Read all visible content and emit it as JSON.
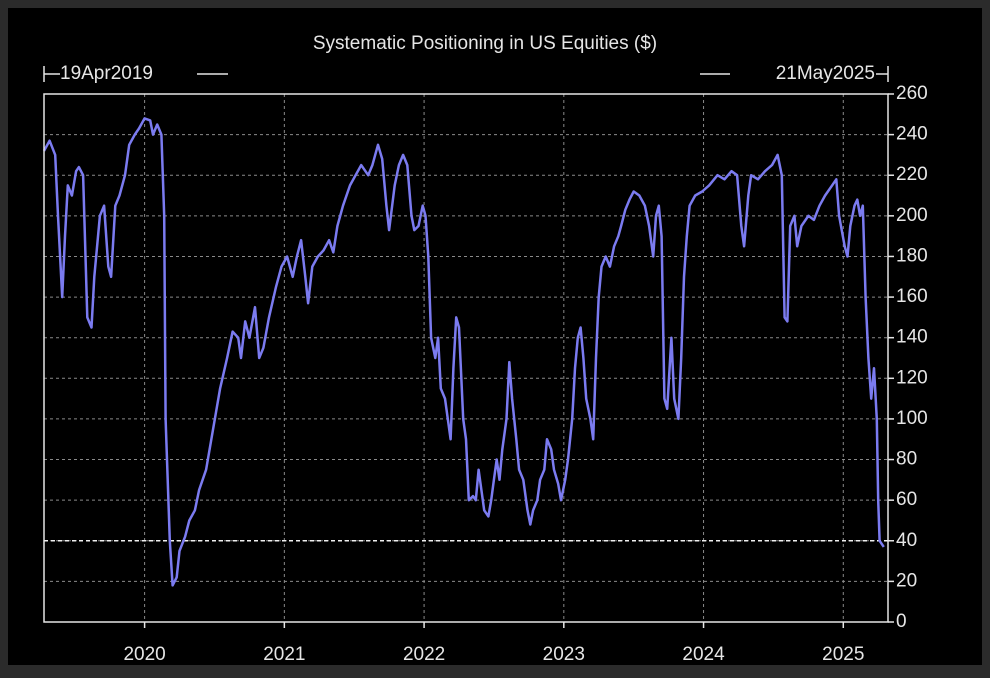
{
  "chart_data": {
    "type": "line",
    "title": "Systematic Positioning in US Equities ($)",
    "start_label": "19Apr2019",
    "end_label": "21May2025",
    "color": "#7b7bf0",
    "grid": true,
    "reference_line": 40,
    "xlim": [
      2019.28,
      2025.32
    ],
    "xticks": [
      2020,
      2021,
      2022,
      2023,
      2024,
      2025
    ],
    "ylim": [
      0,
      260
    ],
    "yticks": [
      0,
      20,
      40,
      60,
      80,
      100,
      120,
      140,
      160,
      180,
      200,
      220,
      240,
      260
    ],
    "x": [
      2019.28,
      2019.32,
      2019.36,
      2019.38,
      2019.41,
      2019.43,
      2019.45,
      2019.48,
      2019.51,
      2019.53,
      2019.56,
      2019.59,
      2019.62,
      2019.64,
      2019.68,
      2019.71,
      2019.74,
      2019.76,
      2019.79,
      2019.82,
      2019.86,
      2019.89,
      2019.93,
      2019.96,
      2020.0,
      2020.04,
      2020.06,
      2020.09,
      2020.12,
      2020.14,
      2020.15,
      2020.18,
      2020.2,
      2020.23,
      2020.25,
      2020.29,
      2020.32,
      2020.36,
      2020.39,
      2020.44,
      2020.49,
      2020.54,
      2020.59,
      2020.63,
      2020.67,
      2020.69,
      2020.72,
      2020.75,
      2020.79,
      2020.82,
      2020.85,
      2020.89,
      2020.94,
      2020.98,
      2021.02,
      2021.06,
      2021.09,
      2021.12,
      2021.15,
      2021.17,
      2021.2,
      2021.24,
      2021.28,
      2021.32,
      2021.35,
      2021.38,
      2021.42,
      2021.47,
      2021.51,
      2021.55,
      2021.6,
      2021.63,
      2021.67,
      2021.7,
      2021.73,
      2021.75,
      2021.79,
      2021.82,
      2021.85,
      2021.88,
      2021.91,
      2021.93,
      2021.96,
      2021.99,
      2022.01,
      2022.03,
      2022.05,
      2022.08,
      2022.1,
      2022.12,
      2022.15,
      2022.17,
      2022.19,
      2022.21,
      2022.23,
      2022.25,
      2022.28,
      2022.3,
      2022.32,
      2022.35,
      2022.37,
      2022.39,
      2022.41,
      2022.43,
      2022.46,
      2022.48,
      2022.5,
      2022.52,
      2022.54,
      2022.56,
      2022.59,
      2022.61,
      2022.63,
      2022.66,
      2022.68,
      2022.71,
      2022.74,
      2022.76,
      2022.78,
      2022.81,
      2022.83,
      2022.86,
      2022.88,
      2022.91,
      2022.93,
      2022.96,
      2022.98,
      2023.01,
      2023.03,
      2023.06,
      2023.08,
      2023.1,
      2023.12,
      2023.14,
      2023.16,
      2023.19,
      2023.21,
      2023.23,
      2023.25,
      2023.27,
      2023.3,
      2023.33,
      2023.36,
      2023.39,
      2023.41,
      2023.44,
      2023.47,
      2023.5,
      2023.54,
      2023.58,
      2023.61,
      2023.64,
      2023.66,
      2023.68,
      2023.7,
      2023.72,
      2023.74,
      2023.77,
      2023.79,
      2023.82,
      2023.84,
      2023.86,
      2023.88,
      2023.9,
      2023.94,
      2023.99,
      2024.04,
      2024.1,
      2024.15,
      2024.2,
      2024.24,
      2024.27,
      2024.29,
      2024.32,
      2024.34,
      2024.39,
      2024.44,
      2024.49,
      2024.53,
      2024.56,
      2024.58,
      2024.6,
      2024.62,
      2024.65,
      2024.67,
      2024.7,
      2024.75,
      2024.79,
      2024.83,
      2024.87,
      2024.92,
      2024.95,
      2024.97,
      2025.01,
      2025.03,
      2025.05,
      2025.08,
      2025.1,
      2025.12,
      2025.14,
      2025.16,
      2025.18,
      2025.2,
      2025.22,
      2025.24,
      2025.25,
      2025.26,
      2025.29
    ],
    "values": [
      232,
      237,
      230,
      200,
      160,
      190,
      215,
      210,
      222,
      224,
      220,
      150,
      145,
      170,
      200,
      205,
      175,
      170,
      205,
      210,
      220,
      235,
      240,
      243,
      248,
      247,
      240,
      245,
      240,
      200,
      100,
      40,
      18,
      22,
      35,
      42,
      50,
      55,
      65,
      75,
      95,
      115,
      130,
      143,
      140,
      130,
      148,
      140,
      155,
      130,
      135,
      150,
      165,
      175,
      180,
      170,
      180,
      188,
      170,
      157,
      175,
      180,
      183,
      188,
      182,
      195,
      205,
      215,
      220,
      225,
      220,
      225,
      235,
      228,
      205,
      193,
      215,
      225,
      230,
      225,
      200,
      193,
      195,
      205,
      200,
      180,
      140,
      130,
      140,
      115,
      110,
      100,
      90,
      125,
      150,
      145,
      100,
      90,
      60,
      62,
      60,
      75,
      65,
      55,
      52,
      60,
      70,
      80,
      70,
      85,
      100,
      128,
      110,
      90,
      75,
      70,
      55,
      48,
      55,
      60,
      70,
      75,
      90,
      85,
      75,
      68,
      60,
      70,
      80,
      100,
      125,
      140,
      145,
      130,
      110,
      100,
      90,
      130,
      160,
      175,
      180,
      175,
      185,
      190,
      195,
      203,
      208,
      212,
      210,
      205,
      195,
      180,
      200,
      205,
      190,
      110,
      105,
      140,
      110,
      100,
      130,
      170,
      190,
      205,
      210,
      212,
      215,
      220,
      218,
      222,
      220,
      195,
      185,
      210,
      220,
      218,
      222,
      225,
      230,
      220,
      150,
      148,
      195,
      200,
      185,
      195,
      200,
      198,
      205,
      210,
      215,
      218,
      200,
      185,
      180,
      195,
      205,
      208,
      200,
      205,
      160,
      130,
      110,
      125,
      100,
      60,
      40,
      37
    ]
  }
}
